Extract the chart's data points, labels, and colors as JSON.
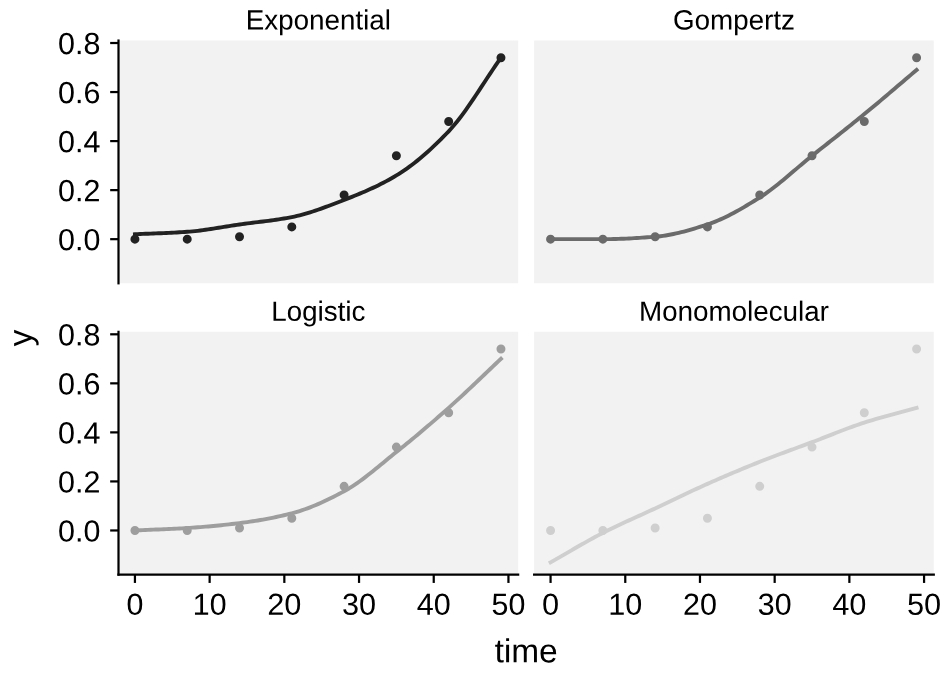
{
  "chart_data": [
    {
      "type": "scatter",
      "title": "Exponential",
      "ylabel": "y",
      "x": [
        0,
        7,
        14,
        21,
        28,
        35,
        42,
        49
      ],
      "xlim": [
        -2.2,
        51.3
      ],
      "ylim": [
        -0.18,
        0.81
      ],
      "yticks": [
        {
          "value": 0,
          "label": "0.0"
        },
        {
          "value": 0.2,
          "label": "0.2"
        },
        {
          "value": 0.4,
          "label": "0.4"
        },
        {
          "value": 0.6,
          "label": "0.6"
        },
        {
          "value": 0.8,
          "label": "0.8"
        }
      ],
      "tick_labels": "y",
      "series": [
        {
          "color": "#222222",
          "marker": "circle",
          "values": [
            0,
            0,
            0.01,
            0.05,
            0.18,
            0.34,
            0.48,
            0.74
          ]
        },
        {
          "type": "line",
          "color": "#222222",
          "line_style": "solid",
          "marker": "none",
          "values": [
            0.02,
            0.03,
            0.06,
            0.09,
            0.16,
            0.26,
            0.44,
            0.74
          ]
        }
      ]
    },
    {
      "type": "scatter",
      "title": "Gompertz",
      "x": [
        0,
        7,
        14,
        21,
        28,
        35,
        42,
        49
      ],
      "xlim": [
        -2.2,
        51.3
      ],
      "ylim": [
        -0.18,
        0.81
      ],
      "tick_labels": false,
      "series": [
        {
          "color": "#6b6b6b",
          "marker": "circle",
          "values": [
            0,
            0,
            0.01,
            0.05,
            0.18,
            0.34,
            0.48,
            0.74
          ]
        },
        {
          "type": "line",
          "color": "#6b6b6b",
          "line_style": "solid",
          "marker": "none",
          "values": [
            0,
            0,
            0.01,
            0.06,
            0.17,
            0.34,
            0.51,
            0.69
          ]
        }
      ]
    },
    {
      "type": "scatter",
      "title": "Logistic",
      "xlabel": "time",
      "x": [
        0,
        7,
        14,
        21,
        28,
        35,
        42,
        49
      ],
      "xlim": [
        -2.2,
        51.3
      ],
      "ylim": [
        -0.18,
        0.81
      ],
      "xticks": [
        0,
        10,
        20,
        30,
        40,
        50
      ],
      "yticks": [
        {
          "value": 0,
          "label": "0.0"
        },
        {
          "value": 0.2,
          "label": "0.2"
        },
        {
          "value": 0.4,
          "label": "0.4"
        },
        {
          "value": 0.6,
          "label": "0.6"
        },
        {
          "value": 0.8,
          "label": "0.8"
        }
      ],
      "series": [
        {
          "color": "#9e9e9e",
          "marker": "circle",
          "values": [
            0,
            0,
            0.01,
            0.05,
            0.18,
            0.34,
            0.48,
            0.74
          ]
        },
        {
          "type": "line",
          "color": "#9e9e9e",
          "line_style": "solid",
          "marker": "none",
          "values": [
            0,
            0.01,
            0.03,
            0.07,
            0.16,
            0.32,
            0.5,
            0.7
          ]
        }
      ]
    },
    {
      "type": "scatter",
      "title": "Monomolecular",
      "x": [
        0,
        7,
        14,
        21,
        28,
        35,
        42,
        49
      ],
      "xlim": [
        -2.2,
        51.3
      ],
      "ylim": [
        -0.18,
        0.81
      ],
      "xticks": [
        0,
        10,
        20,
        30,
        40,
        50
      ],
      "tick_labels": "x",
      "series": [
        {
          "color": "#cfcfcf",
          "marker": "circle",
          "values": [
            0,
            0,
            0.01,
            0.05,
            0.18,
            0.34,
            0.48,
            0.74
          ]
        },
        {
          "type": "line",
          "color": "#cfcfcf",
          "line_style": "solid",
          "marker": "none",
          "values": [
            -0.13,
            -0.01,
            0.09,
            0.19,
            0.28,
            0.36,
            0.44,
            0.5
          ]
        }
      ]
    }
  ]
}
